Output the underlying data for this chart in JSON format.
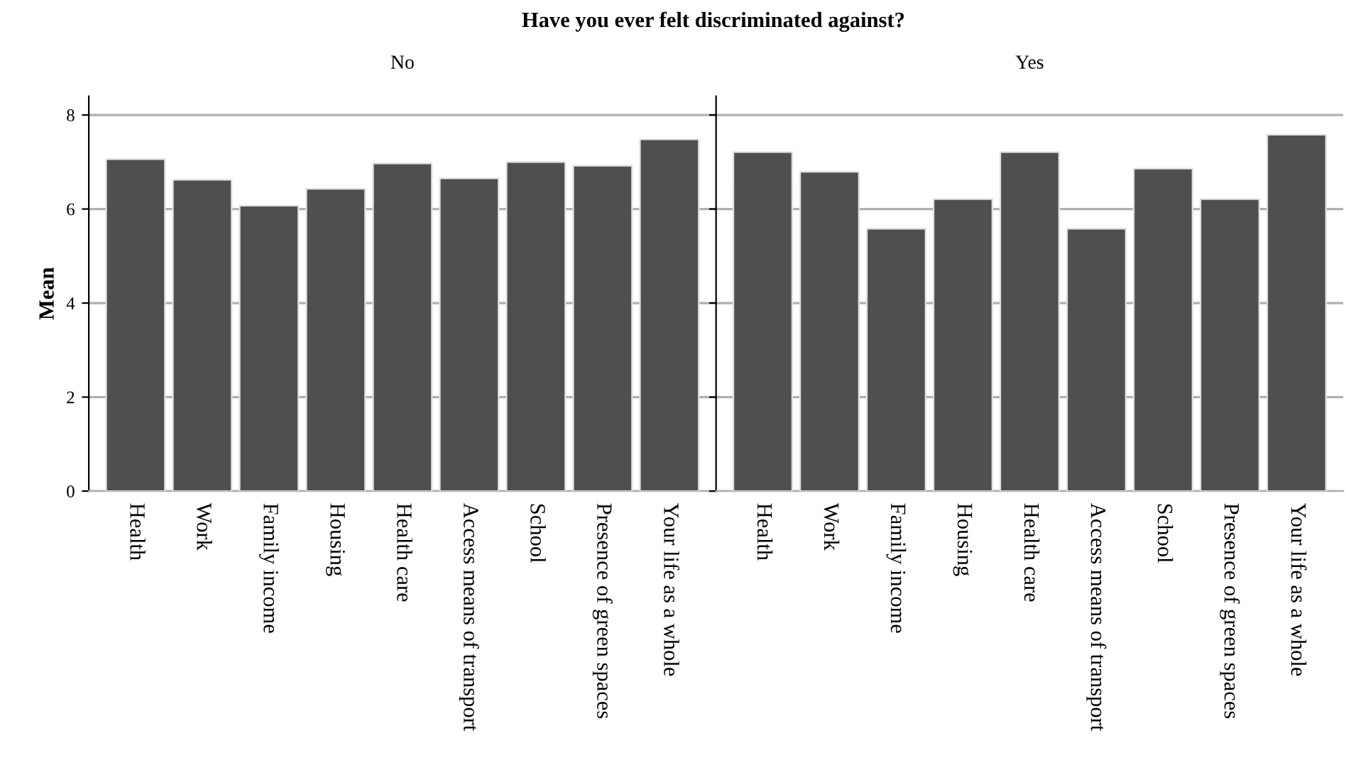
{
  "chart_data": [
    {
      "type": "bar",
      "title": "Have you ever felt discriminated against?",
      "subtitle": "No",
      "ylabel": "Mean",
      "categories": [
        "Health",
        "Work",
        "Family income",
        "Housing",
        "Health care",
        "Access means of transport",
        "School",
        "Presence of green spaces",
        "Your life as a whole"
      ],
      "values": [
        7.06,
        6.62,
        6.07,
        6.43,
        6.97,
        6.65,
        7.0,
        6.92,
        7.48
      ],
      "color": "#4f4f4f",
      "ylim": [
        0,
        8.4
      ],
      "yticks": [
        0,
        2,
        4,
        6,
        8
      ],
      "grid": "y"
    },
    {
      "type": "bar",
      "subtitle": "Yes",
      "categories": [
        "Health",
        "Work",
        "Family income",
        "Housing",
        "Health care",
        "Access means of transport",
        "School",
        "Presence of green spaces",
        "Your life as a whole"
      ],
      "values": [
        7.21,
        6.79,
        5.58,
        6.21,
        7.21,
        5.58,
        6.86,
        6.21,
        7.58
      ],
      "color": "#4f4f4f",
      "ylim": [
        0,
        8.4
      ],
      "yticks": [
        0,
        2,
        4,
        6,
        8
      ],
      "grid": "y",
      "tick_labels": "x"
    }
  ]
}
